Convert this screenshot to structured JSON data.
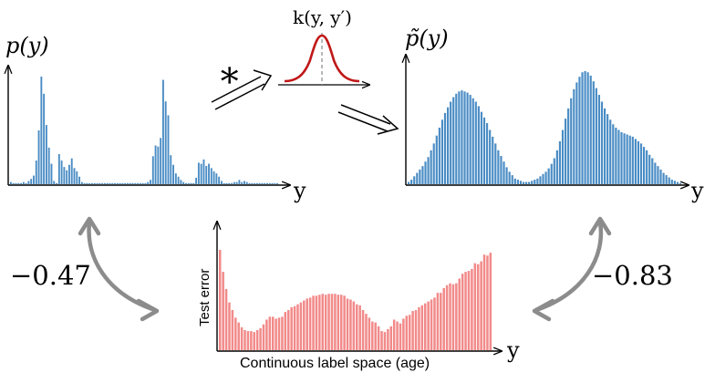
{
  "labels": {
    "p_y": "p(y)",
    "p_tilde_y": "p̃(y)",
    "kernel": "k(y, y′)",
    "convolve": "∗",
    "corr_left": "−0.47",
    "corr_right": "−0.83",
    "y_left": "y",
    "y_right": "y",
    "y_bottom": "y",
    "test_error": "Test error",
    "xlabel_bottom": "Continuous label space (age)"
  },
  "colors": {
    "hist_blue": "#4a8cc4",
    "hist_red": "#f28a8a",
    "kernel_red": "#c01818",
    "arrow_gray": "#8c8c8c",
    "axis": "#000000"
  },
  "chart_data": [
    {
      "type": "bar",
      "title": "p(y)",
      "xlabel": "y",
      "ylabel": "",
      "values": [
        2,
        1,
        1,
        1,
        1,
        2,
        1,
        3,
        5,
        8,
        22,
        50,
        100,
        84,
        55,
        34,
        19,
        3,
        1,
        28,
        22,
        16,
        13,
        18,
        24,
        15,
        12,
        7,
        2,
        1,
        1,
        1,
        1,
        1,
        1,
        1,
        1,
        1,
        1,
        1,
        1,
        1,
        1,
        1,
        1,
        1,
        1,
        1,
        1,
        1,
        1,
        1,
        1,
        1,
        2,
        4,
        26,
        36,
        35,
        43,
        97,
        77,
        64,
        27,
        18,
        10,
        7,
        4,
        2,
        1,
        1,
        1,
        1,
        6,
        20,
        19,
        23,
        17,
        19,
        15,
        12,
        10,
        7,
        3,
        1,
        1,
        1,
        1,
        2,
        2,
        4,
        2,
        3,
        2,
        1,
        1,
        1,
        1,
        1,
        1,
        1,
        1,
        1,
        1,
        1,
        1
      ]
    },
    {
      "type": "bar",
      "title": "p̃(y)",
      "xlabel": "y",
      "ylabel": "",
      "values": [
        2,
        4,
        7,
        10,
        13,
        16,
        20,
        24,
        30,
        36,
        43,
        50,
        57,
        63,
        68,
        73,
        77,
        80,
        82,
        83,
        82,
        81,
        79,
        76,
        73,
        69,
        64,
        59,
        54,
        48,
        42,
        36,
        30,
        25,
        20,
        15,
        11,
        8,
        5,
        4,
        3,
        2,
        2,
        2,
        3,
        4,
        5,
        7,
        9,
        11,
        14,
        18,
        23,
        30,
        38,
        48,
        58,
        67,
        76,
        84,
        90,
        95,
        99,
        100,
        99,
        96,
        91,
        85,
        79,
        73,
        67,
        62,
        57,
        53,
        50,
        48,
        46,
        45,
        44,
        43,
        42,
        40,
        38,
        36,
        33,
        30,
        26,
        23,
        19,
        16,
        13,
        10,
        8,
        6,
        4,
        3,
        2,
        1
      ]
    },
    {
      "type": "bar",
      "title": "",
      "xlabel": "Continuous label space (age)",
      "ylabel": "Test error",
      "values": [
        105,
        82,
        64,
        50,
        42,
        34,
        29,
        24,
        21,
        20,
        20,
        19,
        21,
        23,
        27,
        32,
        35,
        35,
        33,
        34,
        35,
        40,
        42,
        45,
        46,
        48,
        50,
        52,
        54,
        55,
        57,
        57,
        58,
        59,
        58,
        59,
        59,
        59,
        58,
        58,
        57,
        54,
        53,
        51,
        48,
        47,
        42,
        38,
        34,
        30,
        29,
        25,
        20,
        19,
        22,
        25,
        32,
        30,
        28,
        33,
        36,
        37,
        41,
        42,
        45,
        47,
        49,
        51,
        53,
        55,
        60,
        60,
        65,
        68,
        70,
        69,
        70,
        75,
        80,
        82,
        83,
        85,
        91,
        90,
        93,
        100,
        99,
        102
      ]
    }
  ]
}
